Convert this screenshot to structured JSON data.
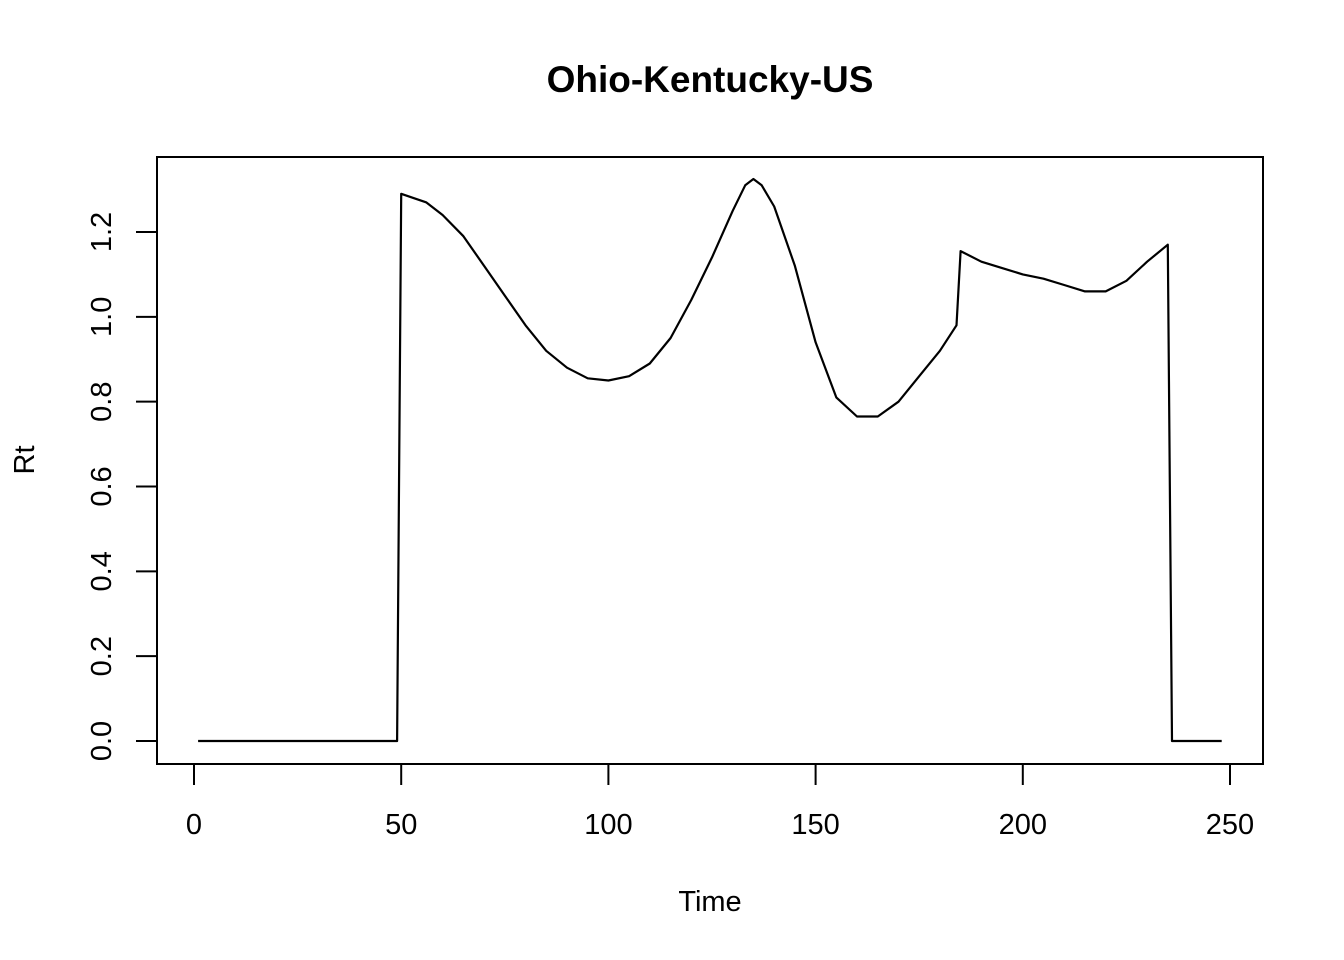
{
  "chart_data": {
    "type": "line",
    "title": "Ohio-Kentucky-US",
    "xlabel": "Time",
    "ylabel": "Rt",
    "xlim": [
      1,
      248
    ],
    "ylim": [
      0,
      1.3
    ],
    "xticks": [
      0,
      50,
      100,
      150,
      200,
      250
    ],
    "xtick_labels": [
      "0",
      "50",
      "100",
      "150",
      "200",
      "250"
    ],
    "yticks": [
      0,
      0.2,
      0.4,
      0.6,
      0.8,
      1.0,
      1.2
    ],
    "ytick_labels": [
      "0.0",
      "0.2",
      "0.4",
      "0.6",
      "0.8",
      "1.0",
      "1.2"
    ],
    "grid": false,
    "series": [
      {
        "points": [
          [
            1,
            0
          ],
          [
            49,
            0
          ],
          [
            50,
            1.29
          ],
          [
            53,
            1.28
          ],
          [
            56,
            1.27
          ],
          [
            60,
            1.24
          ],
          [
            65,
            1.19
          ],
          [
            70,
            1.12
          ],
          [
            75,
            1.05
          ],
          [
            80,
            0.98
          ],
          [
            85,
            0.92
          ],
          [
            90,
            0.88
          ],
          [
            95,
            0.855
          ],
          [
            100,
            0.85
          ],
          [
            105,
            0.86
          ],
          [
            110,
            0.89
          ],
          [
            115,
            0.95
          ],
          [
            120,
            1.04
          ],
          [
            125,
            1.14
          ],
          [
            130,
            1.25
          ],
          [
            133,
            1.31
          ],
          [
            135,
            1.325
          ],
          [
            137,
            1.31
          ],
          [
            140,
            1.26
          ],
          [
            145,
            1.12
          ],
          [
            150,
            0.94
          ],
          [
            155,
            0.81
          ],
          [
            160,
            0.765
          ],
          [
            165,
            0.765
          ],
          [
            170,
            0.8
          ],
          [
            175,
            0.86
          ],
          [
            180,
            0.92
          ],
          [
            184,
            0.98
          ],
          [
            185,
            1.155
          ],
          [
            190,
            1.13
          ],
          [
            195,
            1.115
          ],
          [
            200,
            1.1
          ],
          [
            205,
            1.09
          ],
          [
            210,
            1.075
          ],
          [
            215,
            1.06
          ],
          [
            220,
            1.06
          ],
          [
            225,
            1.085
          ],
          [
            230,
            1.13
          ],
          [
            235,
            1.17
          ],
          [
            236,
            0
          ],
          [
            248,
            0
          ]
        ]
      }
    ]
  }
}
